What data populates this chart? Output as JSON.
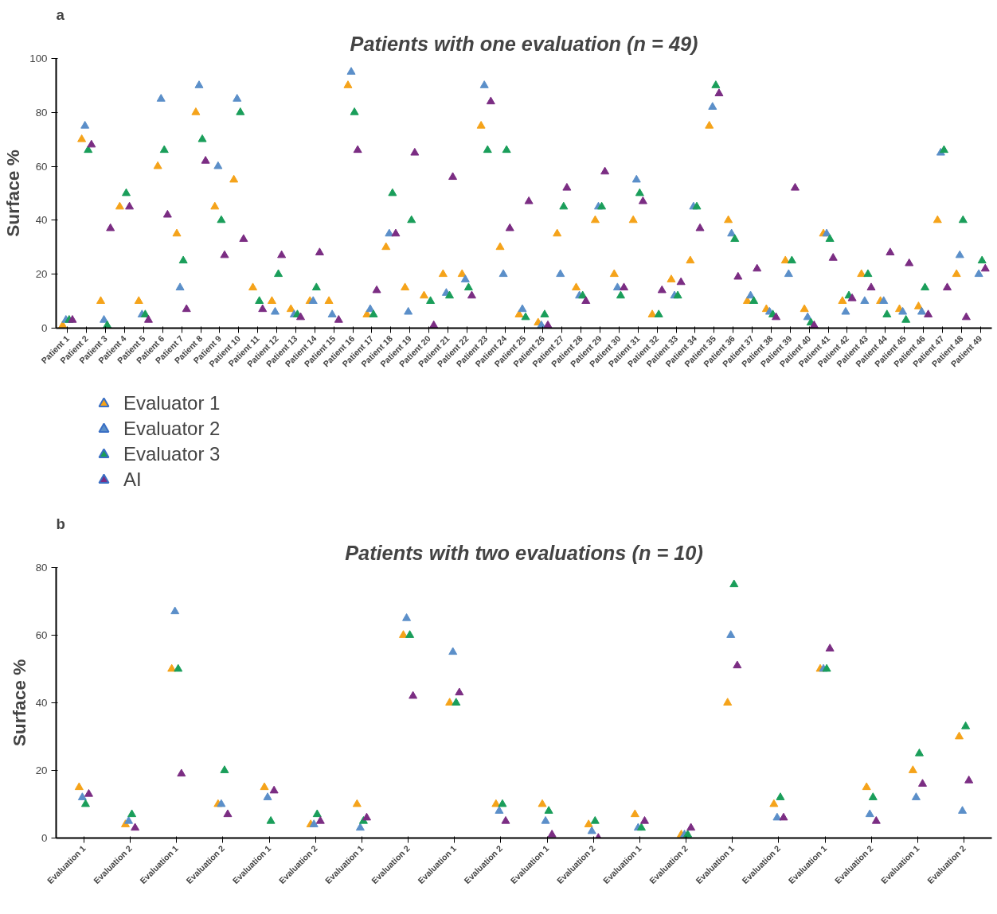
{
  "chart_data": [
    {
      "type": "scatter",
      "title": "Patients with one evaluation (n = 49)",
      "ylabel": "Surface %",
      "annotations": [
        "a"
      ],
      "marker": "triangle",
      "grid": false,
      "legend": "bottom left",
      "categories": [
        "Patient 1",
        "Patient 2",
        "Patient 3",
        "Patient 4",
        "Patient 5",
        "Patient 6",
        "Patient 7",
        "Patient 8",
        "Patient 9",
        "Patient 10",
        "Patient 11",
        "Patient 12",
        "Patient 13",
        "Patient 14",
        "Patient 15",
        "Patient 16",
        "Patient 17",
        "Patient 18",
        "Patient 19",
        "Patient 20",
        "Patient 21",
        "Patient 22",
        "Patient 23",
        "Patient 24",
        "Patient 25",
        "Patient 26",
        "Patient 27",
        "Patient 28",
        "Patient 29",
        "Patient 30",
        "Patient 31",
        "Patient 32",
        "Patient 33",
        "Patient 34",
        "Patient 35",
        "Patient 36",
        "Patient 37",
        "Patient 38",
        "Patient 39",
        "Patient 40",
        "Patient 41",
        "Patient 42",
        "Patient 43",
        "Patient 44",
        "Patient 45",
        "Patient 46",
        "Patient 47",
        "Patient 48",
        "Patient 49"
      ],
      "ylim": [
        0,
        100
      ],
      "yticks": [
        0,
        20,
        40,
        60,
        80,
        100
      ],
      "series": [
        {
          "name": "Evaluator 1",
          "color": "#f5a31a",
          "values": [
            1,
            70,
            10,
            45,
            10,
            60,
            35,
            80,
            45,
            55,
            15,
            10,
            7,
            10,
            10,
            90,
            5,
            30,
            15,
            12,
            20,
            20,
            75,
            30,
            5,
            2,
            35,
            15,
            40,
            20,
            40,
            5,
            18,
            25,
            75,
            40,
            10,
            7,
            25,
            7,
            35,
            10,
            20,
            10,
            7,
            8,
            40,
            20,
            null
          ]
        },
        {
          "name": "Evaluator 2",
          "color": "#5b8fc9",
          "values": [
            3,
            75,
            3,
            null,
            5,
            85,
            15,
            90,
            60,
            85,
            null,
            6,
            5,
            10,
            5,
            95,
            7,
            35,
            6,
            null,
            13,
            18,
            90,
            20,
            7,
            1,
            20,
            12,
            45,
            15,
            55,
            null,
            12,
            45,
            82,
            35,
            12,
            6,
            20,
            4,
            35,
            6,
            10,
            10,
            6,
            6,
            65,
            27,
            20
          ]
        },
        {
          "name": "Evaluator 3",
          "color": "#1a9e5a",
          "values": [
            3,
            66,
            1,
            50,
            5,
            66,
            25,
            70,
            40,
            80,
            10,
            20,
            5,
            15,
            null,
            80,
            5,
            50,
            40,
            10,
            12,
            15,
            66,
            66,
            4,
            5,
            45,
            12,
            45,
            12,
            50,
            5,
            12,
            45,
            90,
            33,
            10,
            5,
            25,
            2,
            33,
            12,
            20,
            5,
            3,
            15,
            66,
            40,
            25
          ]
        },
        {
          "name": "AI",
          "color": "#7b2d83",
          "values": [
            3,
            68,
            37,
            45,
            3,
            42,
            7,
            62,
            27,
            33,
            7,
            27,
            4,
            28,
            3,
            66,
            14,
            35,
            65,
            1,
            56,
            12,
            84,
            37,
            47,
            1,
            52,
            10,
            58,
            15,
            47,
            14,
            17,
            37,
            87,
            19,
            22,
            4,
            52,
            1,
            26,
            11,
            15,
            28,
            24,
            5,
            15,
            4,
            22
          ]
        }
      ]
    },
    {
      "type": "scatter",
      "title": "Patients with two evaluations (n = 10)",
      "ylabel": "Surface %",
      "annotations": [
        "b"
      ],
      "marker": "triangle",
      "grid": false,
      "categories": [
        "Evaluation 1",
        "Evaluation 2",
        "Evaluation 1",
        "Evaluation 2",
        "Evaluation 1",
        "Evaluation 2",
        "Evaluation 1",
        "Evaluation 2",
        "Evaluation 1",
        "Evaluation 2",
        "Evaluation 1",
        "Evaluation 2",
        "Evaluation 1",
        "Evaluation 2",
        "Evaluation 1",
        "Evaluation 2",
        "Evaluation 1",
        "Evaluation 2",
        "Evaluation 1",
        "Evaluation 2"
      ],
      "ylim": [
        0,
        80
      ],
      "yticks": [
        0,
        20,
        40,
        60,
        80
      ],
      "series": [
        {
          "color": "#f5a31a",
          "values": [
            15,
            4,
            50,
            10,
            15,
            4,
            10,
            60,
            40,
            10,
            10,
            4,
            7,
            1,
            40,
            10,
            50,
            15,
            20,
            30
          ]
        },
        {
          "color": "#5b8fc9",
          "values": [
            12,
            5,
            67,
            10,
            12,
            4,
            3,
            65,
            55,
            8,
            5,
            2,
            3,
            1,
            60,
            6,
            50,
            7,
            12,
            8
          ]
        },
        {
          "color": "#1a9e5a",
          "values": [
            10,
            7,
            50,
            20,
            5,
            7,
            5,
            60,
            40,
            10,
            8,
            5,
            3,
            1,
            75,
            12,
            50,
            12,
            25,
            33
          ]
        },
        {
          "color": "#7b2d83",
          "values": [
            13,
            3,
            19,
            7,
            14,
            5,
            6,
            42,
            43,
            5,
            1,
            0,
            5,
            3,
            51,
            6,
            56,
            5,
            16,
            17
          ]
        }
      ]
    }
  ]
}
